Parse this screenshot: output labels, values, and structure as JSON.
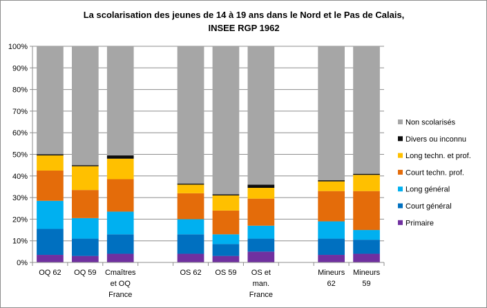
{
  "chart_data": {
    "type": "bar",
    "stacked": true,
    "title_lines": [
      "La scolarisation des jeunes de 14 à 19 ans dans le Nord et le Pas de Calais,",
      "INSEE RGP 1962"
    ],
    "xlabel": "",
    "ylabel": "",
    "ylim": [
      0,
      100
    ],
    "y_ticks": [
      "0%",
      "10%",
      "20%",
      "30%",
      "40%",
      "50%",
      "60%",
      "70%",
      "80%",
      "90%",
      "100%"
    ],
    "legend_position": "right",
    "groups": [
      {
        "name": "OQ",
        "categories": [
          {
            "label": [
              "OQ 62"
            ],
            "values": [
              3.5,
              12,
              13,
              14,
              7,
              0.5,
              50
            ]
          },
          {
            "label": [
              "OQ 59"
            ],
            "values": [
              3,
              8,
              9.5,
              13,
              11,
              0.5,
              55
            ]
          },
          {
            "label": [
              "Cmaîtres",
              "et OQ",
              "France"
            ],
            "values": [
              4,
              9,
              10.5,
              15,
              9.5,
              1.5,
              50.5
            ]
          }
        ]
      },
      {
        "name": "OS",
        "categories": [
          {
            "label": [
              "OS 62"
            ],
            "values": [
              4,
              9,
              7,
              12,
              4,
              0.5,
              63.5
            ]
          },
          {
            "label": [
              "OS 59"
            ],
            "values": [
              3,
              5.5,
              4.5,
              11,
              7,
              0.5,
              68.5
            ]
          },
          {
            "label": [
              "OS et",
              "man.",
              "France"
            ],
            "values": [
              5,
              6,
              6,
              12.5,
              5,
              1.5,
              64
            ]
          }
        ]
      },
      {
        "name": "Mineurs",
        "categories": [
          {
            "label": [
              "Mineurs",
              "62"
            ],
            "values": [
              3.5,
              7.5,
              8,
              14,
              4.5,
              0.5,
              62
            ]
          },
          {
            "label": [
              "Mineurs",
              "59"
            ],
            "values": [
              4,
              6.5,
              4.5,
              18,
              7.5,
              0.5,
              59
            ]
          }
        ]
      }
    ],
    "series": [
      {
        "name": "Primaire",
        "color": "#7030A0"
      },
      {
        "name": "Court général",
        "color": "#0070C0"
      },
      {
        "name": "Long général",
        "color": "#00B0F0"
      },
      {
        "name": "Court techn.  prof.",
        "color": "#E46C0A"
      },
      {
        "name": "Long techn. et prof.",
        "color": "#FFC000"
      },
      {
        "name": "Divers ou inconnu",
        "color": "#0D0D0D"
      },
      {
        "name": "Non scolarisés",
        "color": "#A6A6A6"
      }
    ],
    "legend_order": [
      "Non scolarisés",
      "Divers ou inconnu",
      "Long techn. et prof.",
      "Court techn.  prof.",
      "Long général",
      "Court général",
      "Primaire"
    ]
  }
}
